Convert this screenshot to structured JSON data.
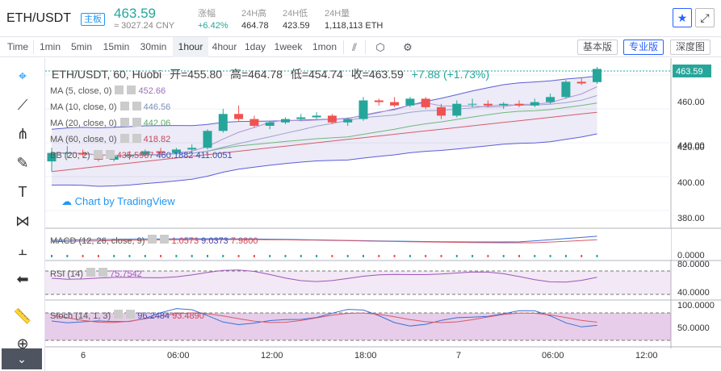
{
  "header": {
    "pair": "ETH/USDT",
    "board_badge": "主板",
    "price": "463.59",
    "cny": "≈ 3027.24 CNY",
    "change_label": "涨幅",
    "change_value": "+6.42%",
    "high_label": "24H高",
    "high_value": "464.78",
    "low_label": "24H低",
    "low_value": "423.59",
    "volume_label": "24H量",
    "volume_value": "1,118,113 ETH",
    "favorite_icon": "star-icon",
    "fullscreen_icon": "expand-icon"
  },
  "toolbar": {
    "time_label": "Time",
    "intervals": [
      "1min",
      "5min",
      "15min",
      "30min",
      "1hour",
      "4hour",
      "1day",
      "1week",
      "1mon"
    ],
    "active_interval": "1hour",
    "tool_icons": [
      "candle-type-icon",
      "indicators-icon",
      "settings-icon",
      "screenshot-icon"
    ],
    "versions": [
      "基本版",
      "专业版",
      "深度图"
    ],
    "active_version": "专业版"
  },
  "left_tools": [
    "crosshair-icon",
    "trend-line-icon",
    "pitchfork-icon",
    "brush-icon",
    "text-icon",
    "pattern-icon",
    "prediction-icon",
    "back-arrow-icon",
    "ruler-icon",
    "zoom-in-icon"
  ],
  "legend": {
    "title": "ETH/USDT, 60, Huobi",
    "open": "开=455.80",
    "high": "高=464.78",
    "low": "低=454.74",
    "close": "收=463.59",
    "change": "+7.88 (+1.73%)"
  },
  "ma_lines": [
    {
      "label": "MA (5, close, 0)",
      "value": "452.66",
      "color": "#9c6fb8"
    },
    {
      "label": "MA (10, close, 0)",
      "value": "446.56",
      "color": "#7e8fb8"
    },
    {
      "label": "MA (20, close, 0)",
      "value": "442.06",
      "color": "#5aa86a"
    },
    {
      "label": "MA (60, close, 0)",
      "value": "418.82",
      "color": "#c9455a"
    }
  ],
  "bb": {
    "label": "BB (20, 2)",
    "v1": "435.5967",
    "v2": "460.1882",
    "v3": "411.0051"
  },
  "watermark": "Chart by TradingView",
  "macd": {
    "label": "MACD (12, 26, close, 9)",
    "v1": "1.0573",
    "v2": "9.0373",
    "v3": "7.9800"
  },
  "rsi": {
    "label": "RSI (14)",
    "value": "75.7542"
  },
  "stoch": {
    "label": "Stoch (14, 1, 3)",
    "v1": "96.2484",
    "v2": "93.4890"
  },
  "price_axis": [
    "460.00",
    "440.00",
    "420.00",
    "400.00",
    "380.00"
  ],
  "current_price_tag": "463.59",
  "macd_axis": [
    "0.0000"
  ],
  "rsi_axis": [
    "80.0000",
    "40.0000"
  ],
  "stoch_axis": [
    "100.0000",
    "50.0000"
  ],
  "time_axis": [
    "6",
    "06:00",
    "12:00",
    "18:00",
    "7",
    "06:00",
    "12:00"
  ],
  "chart_data": {
    "type": "candlestick",
    "title": "ETH/USDT, 60, Huobi",
    "ylim": [
      370,
      470
    ],
    "candles": [
      {
        "o": 409,
        "h": 417,
        "l": 403,
        "c": 414
      },
      {
        "o": 414,
        "h": 418,
        "l": 411,
        "c": 414
      },
      {
        "o": 414,
        "h": 416,
        "l": 412,
        "c": 413
      },
      {
        "o": 413,
        "h": 414,
        "l": 409,
        "c": 410
      },
      {
        "o": 410,
        "h": 413,
        "l": 409,
        "c": 412
      },
      {
        "o": 412,
        "h": 415,
        "l": 410,
        "c": 413
      },
      {
        "o": 413,
        "h": 416,
        "l": 412,
        "c": 415
      },
      {
        "o": 415,
        "h": 417,
        "l": 413,
        "c": 414
      },
      {
        "o": 414,
        "h": 417,
        "l": 413,
        "c": 416
      },
      {
        "o": 416,
        "h": 419,
        "l": 414,
        "c": 417
      },
      {
        "o": 417,
        "h": 428,
        "l": 416,
        "c": 427
      },
      {
        "o": 427,
        "h": 440,
        "l": 426,
        "c": 437
      },
      {
        "o": 437,
        "h": 442,
        "l": 433,
        "c": 434
      },
      {
        "o": 434,
        "h": 436,
        "l": 429,
        "c": 430
      },
      {
        "o": 430,
        "h": 433,
        "l": 428,
        "c": 432
      },
      {
        "o": 432,
        "h": 435,
        "l": 431,
        "c": 434
      },
      {
        "o": 434,
        "h": 437,
        "l": 433,
        "c": 435
      },
      {
        "o": 435,
        "h": 438,
        "l": 434,
        "c": 436
      },
      {
        "o": 436,
        "h": 437,
        "l": 431,
        "c": 432
      },
      {
        "o": 432,
        "h": 435,
        "l": 430,
        "c": 434
      },
      {
        "o": 434,
        "h": 447,
        "l": 433,
        "c": 445
      },
      {
        "o": 445,
        "h": 446,
        "l": 442,
        "c": 444
      },
      {
        "o": 444,
        "h": 447,
        "l": 441,
        "c": 442
      },
      {
        "o": 442,
        "h": 447,
        "l": 441,
        "c": 446
      },
      {
        "o": 446,
        "h": 447,
        "l": 440,
        "c": 441
      },
      {
        "o": 441,
        "h": 443,
        "l": 434,
        "c": 436
      },
      {
        "o": 436,
        "h": 445,
        "l": 435,
        "c": 443
      },
      {
        "o": 443,
        "h": 446,
        "l": 441,
        "c": 443
      },
      {
        "o": 443,
        "h": 445,
        "l": 441,
        "c": 442
      },
      {
        "o": 442,
        "h": 444,
        "l": 440,
        "c": 443
      },
      {
        "o": 443,
        "h": 445,
        "l": 441,
        "c": 442
      },
      {
        "o": 442,
        "h": 446,
        "l": 441,
        "c": 444
      },
      {
        "o": 444,
        "h": 449,
        "l": 443,
        "c": 447
      },
      {
        "o": 447,
        "h": 457,
        "l": 446,
        "c": 456
      },
      {
        "o": 456,
        "h": 458,
        "l": 454,
        "c": 455
      },
      {
        "o": 455.8,
        "h": 464.78,
        "l": 454.74,
        "c": 463.59
      }
    ]
  }
}
